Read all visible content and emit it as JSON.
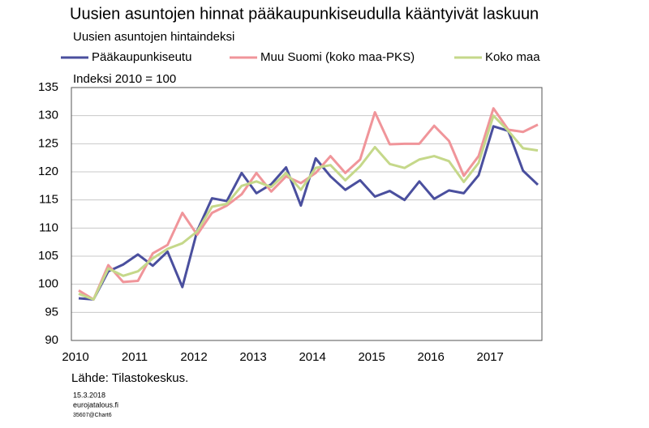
{
  "chart_data": {
    "type": "line",
    "title": "Uusien asuntojen hinnat pääkaupunkiseudulla kääntyivät laskuun",
    "subtitle": "Uusien asuntojen hintaindeksi",
    "y_label": "Indeksi 2010 = 100",
    "source": "Lähde: Tilastokeskus.",
    "footer": [
      "15.3.2018",
      "eurojatalous.fi",
      "35607@Chart6"
    ],
    "categories": [
      "2010",
      null,
      null,
      null,
      "2011",
      null,
      null,
      null,
      "2012",
      null,
      null,
      null,
      "2013",
      null,
      null,
      null,
      "2014",
      null,
      null,
      null,
      "2015",
      null,
      null,
      null,
      "2016",
      null,
      null,
      null,
      "2017",
      null,
      null,
      null
    ],
    "series": [
      {
        "name": "Pääkaupunkiseutu",
        "color": "#4a4f9e",
        "values": [
          97.5,
          97.3,
          102.3,
          103.5,
          105.3,
          103.3,
          105.8,
          99.5,
          109.5,
          115.3,
          114.8,
          119.8,
          116.2,
          117.8,
          120.8,
          114.0,
          122.4,
          119.2,
          116.8,
          118.5,
          115.6,
          116.6,
          115.0,
          118.3,
          115.2,
          116.7,
          116.2,
          119.4,
          128.1,
          127.3,
          120.2,
          117.7
        ]
      },
      {
        "name": "Muu Suomi (koko maa-PKS)",
        "color": "#f0959a",
        "values": [
          98.9,
          97.3,
          103.4,
          100.4,
          100.6,
          105.5,
          107.0,
          112.7,
          108.8,
          112.7,
          114.0,
          116.0,
          119.8,
          116.5,
          119.2,
          118.0,
          119.8,
          122.8,
          119.8,
          122.2,
          130.6,
          124.9,
          125.0,
          125.0,
          128.2,
          125.5,
          119.3,
          122.8,
          131.3,
          127.5,
          127.1,
          128.4
        ]
      },
      {
        "name": "Koko maa",
        "color": "#c5d88a",
        "values": [
          98.3,
          97.3,
          102.8,
          101.5,
          102.3,
          104.6,
          106.3,
          107.3,
          109.4,
          113.8,
          114.3,
          117.5,
          118.3,
          117.3,
          119.8,
          116.8,
          120.7,
          121.2,
          118.5,
          121.0,
          124.4,
          121.4,
          120.7,
          122.2,
          122.8,
          121.9,
          118.2,
          121.6,
          130.0,
          127.3,
          124.2,
          123.8
        ]
      }
    ],
    "ylim": [
      90,
      135
    ],
    "yticks": [
      90,
      95,
      100,
      105,
      110,
      115,
      120,
      125,
      130,
      135
    ],
    "grid": true
  }
}
